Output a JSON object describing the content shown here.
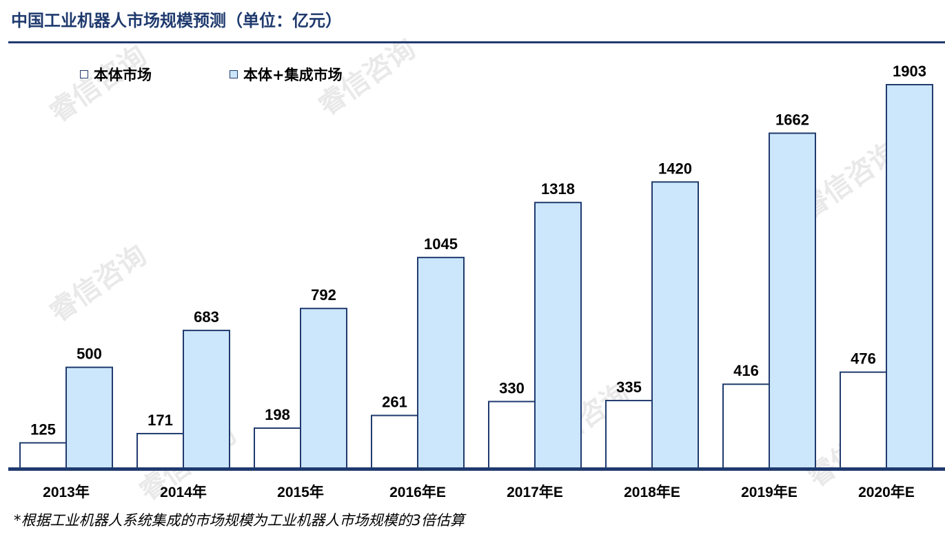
{
  "title": "中国工业机器人市场规模预测（单位：亿元）",
  "footnote": "*根据工业机器人系统集成的市场规模为工业机器人市场规模的3倍估算",
  "watermark": "睿信咨询",
  "colors": {
    "accent": "#1f3a6e",
    "series_body": "#ffffff",
    "series_total": "#cce6fb"
  },
  "chart_data": {
    "type": "bar",
    "title": "中国工业机器人市场规模预测（单位：亿元）",
    "xlabel": "",
    "ylabel": "",
    "ylim": [
      0,
      2000
    ],
    "grid": false,
    "legend_position": "top-left",
    "categories": [
      "2013年",
      "2014年",
      "2015年",
      "2016年E",
      "2017年E",
      "2018年E",
      "2019年E",
      "2020年E"
    ],
    "series": [
      {
        "name": "本体市场",
        "values": [
          125,
          171,
          198,
          261,
          330,
          335,
          416,
          476
        ]
      },
      {
        "name": "本体+集成市场",
        "values": [
          500,
          683,
          792,
          1045,
          1318,
          1420,
          1662,
          1903
        ]
      }
    ]
  }
}
